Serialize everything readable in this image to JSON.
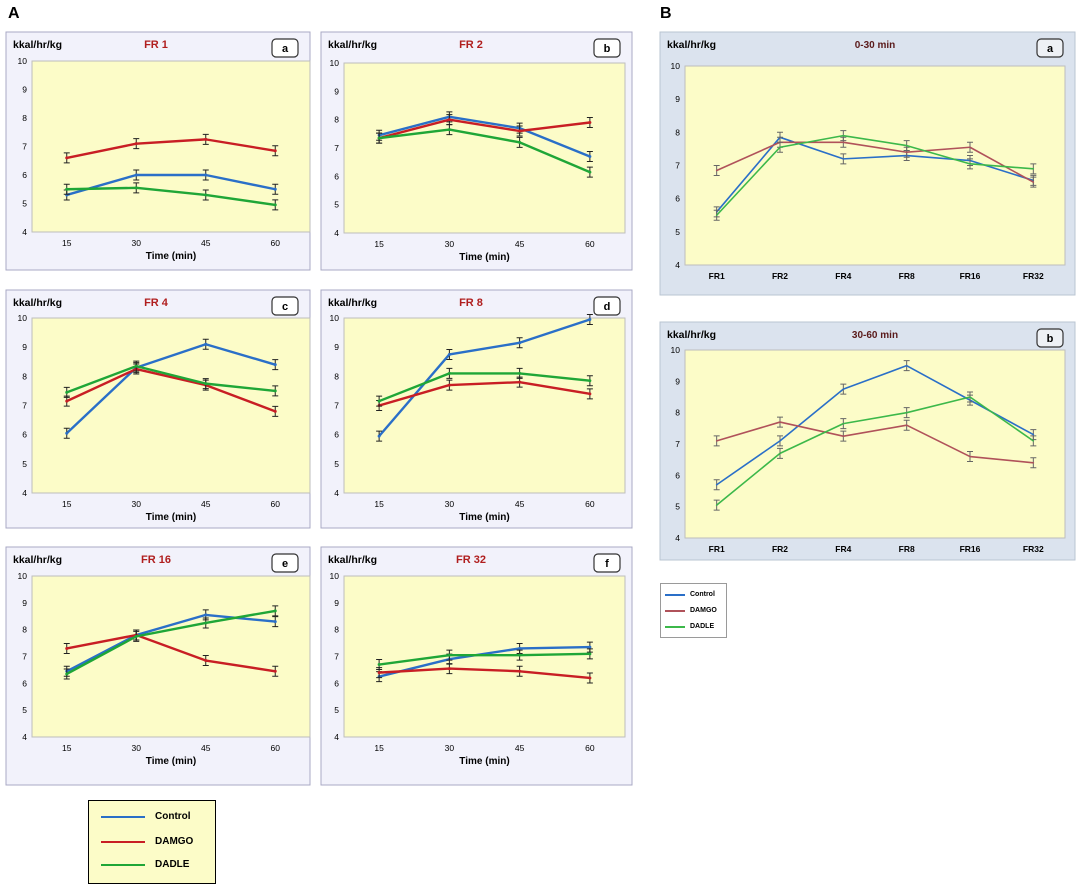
{
  "figure": {
    "label_a": "A",
    "label_b": "B"
  },
  "colors": {
    "Control": "#2a6fc8",
    "DAMGO": "#c81e24",
    "DADLE": "#1fa637",
    "DAMGO_B": "#b0525a",
    "DADLE_B": "#3cb84a"
  },
  "legend_a": {
    "items": [
      {
        "label": "Control",
        "color": "#2a6fc8"
      },
      {
        "label": "DAMGO",
        "color": "#c81e24"
      },
      {
        "label": "DADLE",
        "color": "#1fa637"
      }
    ]
  },
  "legend_b": {
    "items": [
      {
        "label": "Control",
        "color": "#2a6fc8"
      },
      {
        "label": "DAMGO",
        "color": "#b0525a"
      },
      {
        "label": "DADLE",
        "color": "#3cb84a"
      }
    ]
  },
  "chart_data": [
    {
      "type": "line",
      "panel": "A",
      "letter": "a",
      "title": "FR 1",
      "ylabel": "kkal/hr/kg",
      "xlabel": "Time (min)",
      "categories": [
        "15",
        "30",
        "45",
        "60"
      ],
      "ylim": [
        4,
        10
      ],
      "yticks": [
        4,
        5,
        6,
        7,
        8,
        9,
        10
      ],
      "series": [
        {
          "name": "Control",
          "values": [
            5.3,
            6.0,
            6.0,
            5.5
          ]
        },
        {
          "name": "DAMGO",
          "values": [
            6.6,
            7.1,
            7.25,
            6.85
          ]
        },
        {
          "name": "DADLE",
          "values": [
            5.5,
            5.55,
            5.3,
            4.95
          ]
        }
      ]
    },
    {
      "type": "line",
      "panel": "A",
      "letter": "b",
      "title": "FR 2",
      "ylabel": "kkal/hr/kg",
      "xlabel": "Time (min)",
      "categories": [
        "15",
        "30",
        "45",
        "60"
      ],
      "ylim": [
        4,
        10
      ],
      "yticks": [
        4,
        5,
        6,
        7,
        8,
        9,
        10
      ],
      "series": [
        {
          "name": "Control",
          "values": [
            7.45,
            8.1,
            7.7,
            6.7
          ]
        },
        {
          "name": "DAMGO",
          "values": [
            7.35,
            8.0,
            7.6,
            7.9
          ]
        },
        {
          "name": "DADLE",
          "values": [
            7.35,
            7.65,
            7.2,
            6.15
          ]
        }
      ]
    },
    {
      "type": "line",
      "panel": "A",
      "letter": "c",
      "title": "FR 4",
      "ylabel": "kkal/hr/kg",
      "xlabel": "Time (min)",
      "categories": [
        "15",
        "30",
        "45",
        "60"
      ],
      "ylim": [
        4,
        10
      ],
      "yticks": [
        4,
        5,
        6,
        7,
        8,
        9,
        10
      ],
      "series": [
        {
          "name": "Control",
          "values": [
            6.05,
            8.3,
            9.1,
            8.4
          ]
        },
        {
          "name": "DAMGO",
          "values": [
            7.15,
            8.25,
            7.7,
            6.8
          ]
        },
        {
          "name": "DADLE",
          "values": [
            7.45,
            8.35,
            7.75,
            7.5
          ]
        }
      ]
    },
    {
      "type": "line",
      "panel": "A",
      "letter": "d",
      "title": "FR 8",
      "ylabel": "kkal/hr/kg",
      "xlabel": "Time (min)",
      "categories": [
        "15",
        "30",
        "45",
        "60"
      ],
      "ylim": [
        4,
        10
      ],
      "yticks": [
        4,
        5,
        6,
        7,
        8,
        9,
        10
      ],
      "series": [
        {
          "name": "Control",
          "values": [
            5.95,
            8.75,
            9.15,
            9.95
          ]
        },
        {
          "name": "DAMGO",
          "values": [
            7.0,
            7.7,
            7.8,
            7.4
          ]
        },
        {
          "name": "DADLE",
          "values": [
            7.15,
            8.1,
            8.1,
            7.85
          ]
        }
      ]
    },
    {
      "type": "line",
      "panel": "A",
      "letter": "e",
      "title": "FR 16",
      "ylabel": "kkal/hr/kg",
      "xlabel": "Time (min)",
      "categories": [
        "15",
        "30",
        "45",
        "60"
      ],
      "ylim": [
        4,
        10
      ],
      "yticks": [
        4,
        5,
        6,
        7,
        8,
        9,
        10
      ],
      "series": [
        {
          "name": "Control",
          "values": [
            6.45,
            7.8,
            8.55,
            8.3
          ]
        },
        {
          "name": "DAMGO",
          "values": [
            7.3,
            7.8,
            6.85,
            6.45
          ]
        },
        {
          "name": "DADLE",
          "values": [
            6.35,
            7.75,
            8.25,
            8.7
          ]
        }
      ]
    },
    {
      "type": "line",
      "panel": "A",
      "letter": "f",
      "title": "FR 32",
      "ylabel": "kkal/hr/kg",
      "xlabel": "Time (min)",
      "categories": [
        "15",
        "30",
        "45",
        "60"
      ],
      "ylim": [
        4,
        10
      ],
      "yticks": [
        4,
        5,
        6,
        7,
        8,
        9,
        10
      ],
      "series": [
        {
          "name": "Control",
          "values": [
            6.25,
            6.9,
            7.3,
            7.35
          ]
        },
        {
          "name": "DAMGO",
          "values": [
            6.4,
            6.55,
            6.45,
            6.2
          ]
        },
        {
          "name": "DADLE",
          "values": [
            6.7,
            7.05,
            7.05,
            7.1
          ]
        }
      ]
    },
    {
      "type": "line",
      "panel": "B",
      "letter": "a",
      "title": "0-30 min",
      "ylabel": "kkal/hr/kg",
      "xlabel": "",
      "categories": [
        "FR1",
        "FR2",
        "FR4",
        "FR8",
        "FR16",
        "FR32"
      ],
      "ylim": [
        4,
        10
      ],
      "yticks": [
        4,
        5,
        6,
        7,
        8,
        9,
        10
      ],
      "series": [
        {
          "name": "Control",
          "values": [
            5.6,
            7.85,
            7.2,
            7.3,
            7.15,
            6.55
          ]
        },
        {
          "name": "DAMGO",
          "values": [
            6.85,
            7.7,
            7.7,
            7.4,
            7.55,
            6.5
          ]
        },
        {
          "name": "DADLE",
          "values": [
            5.5,
            7.55,
            7.9,
            7.6,
            7.05,
            6.9
          ]
        }
      ]
    },
    {
      "type": "line",
      "panel": "B",
      "letter": "b",
      "title": "30-60 min",
      "ylabel": "kkal/hr/kg",
      "xlabel": "",
      "categories": [
        "FR1",
        "FR2",
        "FR4",
        "FR8",
        "FR16",
        "FR32"
      ],
      "ylim": [
        4,
        10
      ],
      "yticks": [
        4,
        5,
        6,
        7,
        8,
        9,
        10
      ],
      "series": [
        {
          "name": "Control",
          "values": [
            5.7,
            7.1,
            8.75,
            9.5,
            8.4,
            7.3
          ]
        },
        {
          "name": "DAMGO",
          "values": [
            7.1,
            7.7,
            7.25,
            7.6,
            6.6,
            6.4
          ]
        },
        {
          "name": "DADLE",
          "values": [
            5.05,
            6.7,
            7.65,
            8.0,
            8.5,
            7.1
          ]
        }
      ]
    }
  ]
}
